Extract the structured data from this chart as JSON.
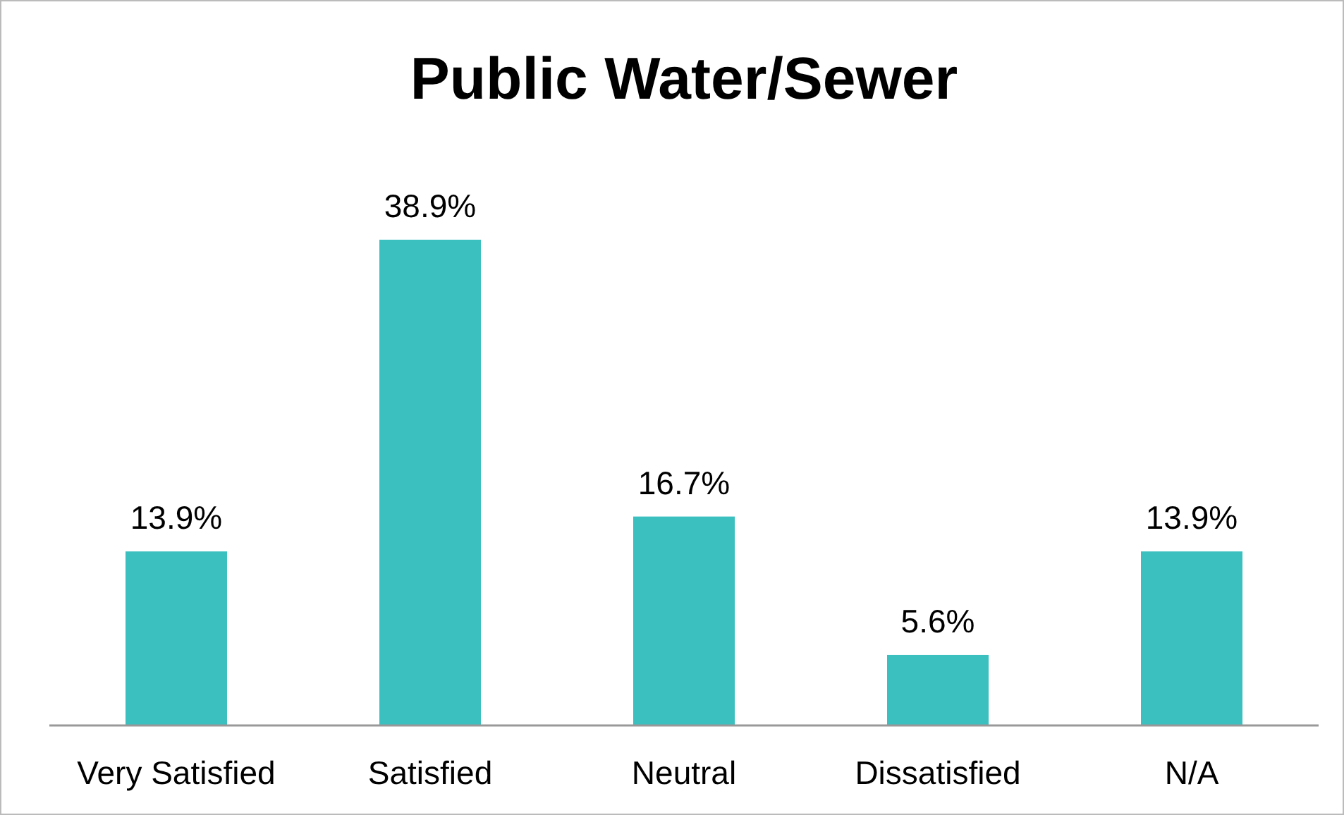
{
  "chart_data": {
    "type": "bar",
    "title": "Public Water/Sewer",
    "categories": [
      "Very Satisfied",
      "Satisfied",
      "Neutral",
      "Dissatisfied",
      "N/A"
    ],
    "values": [
      13.9,
      38.9,
      16.7,
      5.6,
      13.9
    ],
    "value_labels": [
      "13.9%",
      "38.9%",
      "16.7%",
      "5.6%",
      "13.9%"
    ],
    "color": "#3bbfbf"
  }
}
